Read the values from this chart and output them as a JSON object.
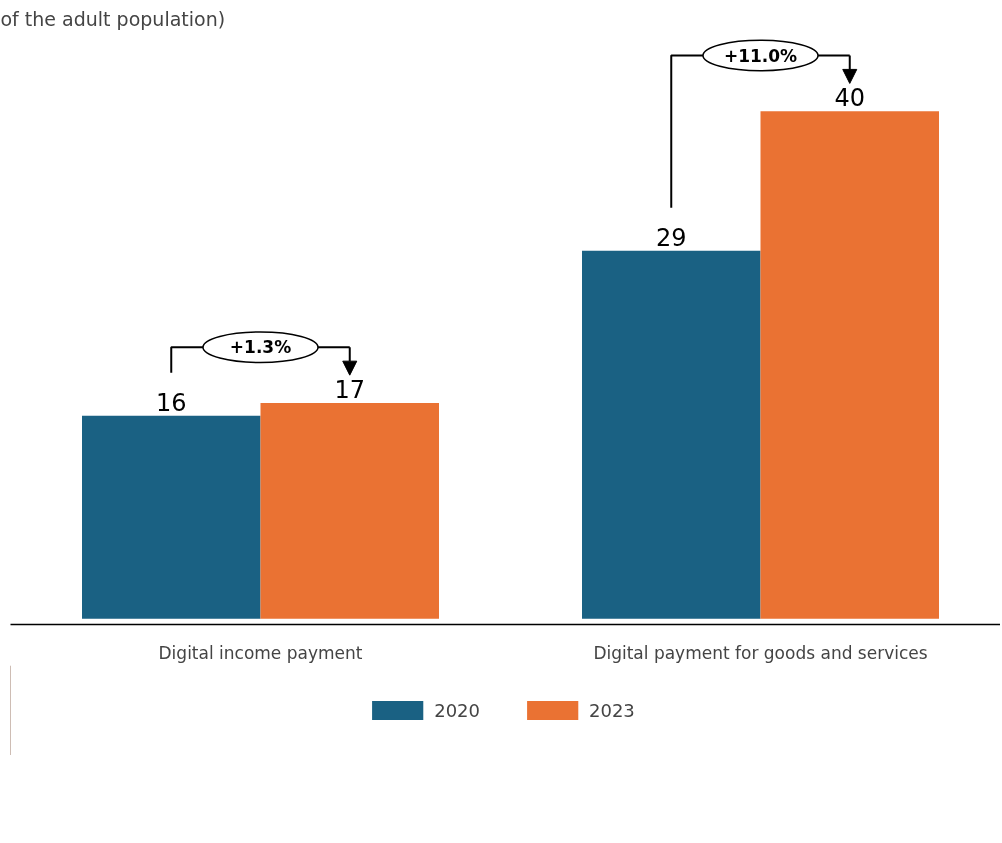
{
  "chart_data": {
    "type": "bar",
    "subtitle": "of the adult population)",
    "categories": [
      "Digital income payment",
      "Digital payment for goods and services"
    ],
    "series": [
      {
        "name": "2020",
        "color": "#1a6183",
        "values": [
          16,
          29
        ]
      },
      {
        "name": "2023",
        "color": "#ea7233",
        "values": [
          17,
          40
        ]
      }
    ],
    "data_labels": true,
    "legend": "bottom",
    "grid": false,
    "annotations": [
      "+1.3%",
      "+11.0%"
    ]
  }
}
